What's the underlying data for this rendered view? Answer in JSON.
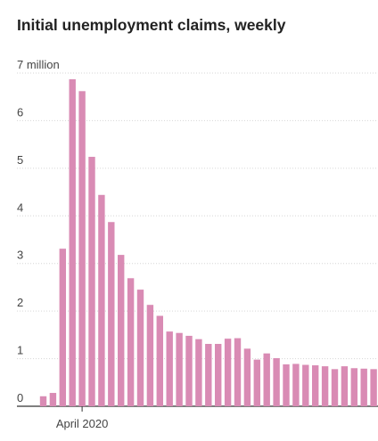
{
  "chart_data": {
    "type": "bar",
    "title": "Initial unemployment claims, weekly",
    "xlabel": "",
    "ylabel": "",
    "ylim": [
      0,
      7
    ],
    "unit": "million",
    "yticks": [
      0,
      1,
      2,
      3,
      4,
      5,
      6,
      7
    ],
    "ytick_labels": [
      "0",
      "1",
      "2",
      "3",
      "4",
      "5",
      "6",
      "7 million"
    ],
    "xtick_labels": [
      {
        "label": "April 2020",
        "index": 4
      }
    ],
    "grid": true,
    "bar_color": "#d98bb4",
    "values": [
      0.21,
      0.28,
      3.31,
      6.87,
      6.62,
      5.24,
      4.44,
      3.87,
      3.18,
      2.69,
      2.45,
      2.13,
      1.9,
      1.57,
      1.54,
      1.48,
      1.41,
      1.31,
      1.31,
      1.42,
      1.43,
      1.21,
      0.98,
      1.11,
      1.01,
      0.88,
      0.89,
      0.87,
      0.86,
      0.84,
      0.78,
      0.84,
      0.8,
      0.79,
      0.78,
      0.72
    ]
  }
}
